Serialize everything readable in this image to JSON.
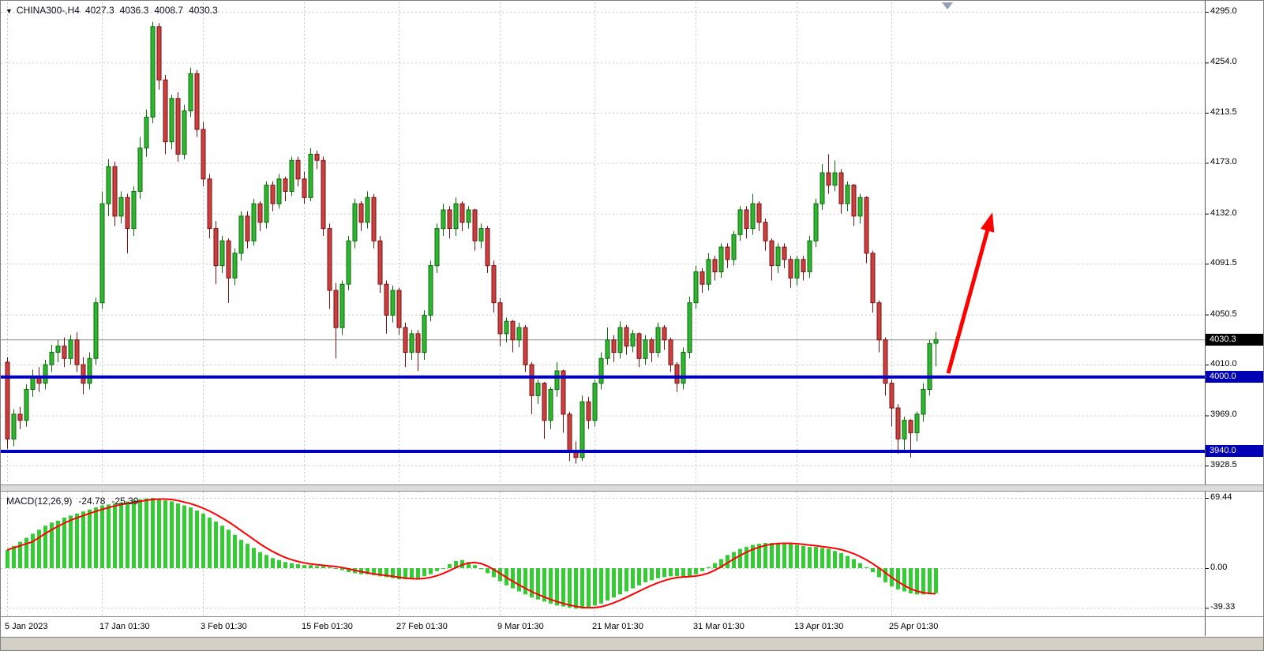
{
  "header": {
    "dropdown_icon": "▼",
    "symbol": "CHINA300-,H4",
    "open": "4027.3",
    "high": "4036.3",
    "low": "4008.7",
    "close": "4030.3"
  },
  "macd_panel": {
    "title": "MACD(12,26,9)",
    "macd_value": "-24.78",
    "signal_value": "-25.39"
  },
  "levels": {
    "current": {
      "label": "4030.3",
      "price": 4030.3
    },
    "lines": [
      {
        "label": "4000.0",
        "price": 4000.0
      },
      {
        "label": "3940.0",
        "price": 3940.0
      }
    ]
  },
  "colors": {
    "up_fill": "#2fb52f",
    "up_stroke": "#0b6b0b",
    "down_fill": "#c94040",
    "down_stroke": "#7e0f0f",
    "grid": "#c8c8c8",
    "support_line": "#0000c0",
    "badge_blue": "#0000b4",
    "badge_black": "#000000",
    "arrow": "#ff0000",
    "hist": "#33cc33",
    "signal_line": "#ff0000",
    "current_price_line": "#8a8a8a"
  },
  "chart_data": {
    "type": "candlestick",
    "title": "CHINA300- H4",
    "x_tick_labels": [
      "5 Jan 2023",
      "17 Jan 01:30",
      "3 Feb 01:30",
      "15 Feb 01:30",
      "27 Feb 01:30",
      "9 Mar 01:30",
      "21 Mar 01:30",
      "31 Mar 01:30",
      "13 Apr 01:30",
      "25 Apr 01:30"
    ],
    "x_tick_indices": [
      0,
      15,
      31,
      47,
      62,
      78,
      93,
      109,
      125,
      140
    ],
    "price_ticks": [
      4295.0,
      4254.0,
      4213.5,
      4173.0,
      4132.0,
      4091.5,
      4050.5,
      4010.0,
      3969.0,
      3928.5
    ],
    "current_price": 4030.3,
    "support_lines": [
      4000.0,
      3940.0
    ],
    "arrow_annotation": {
      "start": {
        "index": 149,
        "price": 4003
      },
      "end": {
        "index": 156,
        "price": 4133
      }
    },
    "ohlc": [
      [
        4012,
        4016,
        3942,
        3950
      ],
      [
        3950,
        3974,
        3944,
        3970
      ],
      [
        3970,
        3976,
        3958,
        3965
      ],
      [
        3965,
        3994,
        3960,
        3990
      ],
      [
        3990,
        4006,
        3984,
        4000
      ],
      [
        4000,
        4008,
        3988,
        3995
      ],
      [
        3995,
        4014,
        3990,
        4010
      ],
      [
        4010,
        4026,
        4004,
        4020
      ],
      [
        4020,
        4030,
        4012,
        4025
      ],
      [
        4025,
        4032,
        4008,
        4015
      ],
      [
        4015,
        4034,
        4010,
        4030
      ],
      [
        4030,
        4036,
        4004,
        4010
      ],
      [
        4010,
        4016,
        3986,
        3995
      ],
      [
        3995,
        4020,
        3990,
        4015
      ],
      [
        4015,
        4064,
        4010,
        4060
      ],
      [
        4060,
        4150,
        4055,
        4140
      ],
      [
        4140,
        4176,
        4130,
        4170
      ],
      [
        4170,
        4174,
        4122,
        4130
      ],
      [
        4130,
        4150,
        4124,
        4145
      ],
      [
        4145,
        4148,
        4100,
        4120
      ],
      [
        4120,
        4154,
        4114,
        4150
      ],
      [
        4150,
        4194,
        4144,
        4185
      ],
      [
        4185,
        4216,
        4178,
        4210
      ],
      [
        4210,
        4287,
        4205,
        4283
      ],
      [
        4283,
        4286,
        4232,
        4240
      ],
      [
        4240,
        4244,
        4180,
        4190
      ],
      [
        4190,
        4228,
        4184,
        4225
      ],
      [
        4225,
        4230,
        4174,
        4180
      ],
      [
        4180,
        4220,
        4176,
        4215
      ],
      [
        4215,
        4250,
        4210,
        4245
      ],
      [
        4245,
        4248,
        4194,
        4200
      ],
      [
        4200,
        4206,
        4154,
        4160
      ],
      [
        4160,
        4164,
        4112,
        4120
      ],
      [
        4120,
        4126,
        4075,
        4090
      ],
      [
        4090,
        4114,
        4084,
        4110
      ],
      [
        4110,
        4112,
        4060,
        4080
      ],
      [
        4080,
        4104,
        4074,
        4100
      ],
      [
        4100,
        4134,
        4094,
        4130
      ],
      [
        4130,
        4134,
        4104,
        4110
      ],
      [
        4110,
        4144,
        4106,
        4140
      ],
      [
        4140,
        4142,
        4118,
        4125
      ],
      [
        4125,
        4158,
        4120,
        4155
      ],
      [
        4155,
        4158,
        4134,
        4140
      ],
      [
        4140,
        4164,
        4136,
        4160
      ],
      [
        4160,
        4162,
        4142,
        4150
      ],
      [
        4150,
        4178,
        4146,
        4175
      ],
      [
        4175,
        4178,
        4154,
        4160
      ],
      [
        4160,
        4166,
        4140,
        4145
      ],
      [
        4145,
        4185,
        4142,
        4180
      ],
      [
        4180,
        4183,
        4168,
        4175
      ],
      [
        4175,
        4178,
        4114,
        4120
      ],
      [
        4120,
        4124,
        4055,
        4070
      ],
      [
        4070,
        4076,
        4015,
        4040
      ],
      [
        4040,
        4078,
        4034,
        4075
      ],
      [
        4075,
        4114,
        4070,
        4110
      ],
      [
        4110,
        4144,
        4104,
        4140
      ],
      [
        4140,
        4142,
        4118,
        4125
      ],
      [
        4125,
        4150,
        4120,
        4145
      ],
      [
        4145,
        4148,
        4104,
        4110
      ],
      [
        4110,
        4114,
        4068,
        4075
      ],
      [
        4075,
        4078,
        4035,
        4050
      ],
      [
        4050,
        4074,
        4044,
        4070
      ],
      [
        4070,
        4072,
        4034,
        4040
      ],
      [
        4040,
        4044,
        4008,
        4020
      ],
      [
        4020,
        4038,
        4014,
        4035
      ],
      [
        4035,
        4038,
        4005,
        4020
      ],
      [
        4020,
        4054,
        4014,
        4050
      ],
      [
        4050,
        4094,
        4045,
        4090
      ],
      [
        4090,
        4124,
        4084,
        4120
      ],
      [
        4120,
        4140,
        4114,
        4135
      ],
      [
        4135,
        4138,
        4112,
        4120
      ],
      [
        4120,
        4145,
        4114,
        4140
      ],
      [
        4140,
        4142,
        4118,
        4125
      ],
      [
        4125,
        4138,
        4120,
        4135
      ],
      [
        4135,
        4136,
        4102,
        4110
      ],
      [
        4110,
        4124,
        4104,
        4120
      ],
      [
        4120,
        4122,
        4084,
        4090
      ],
      [
        4090,
        4094,
        4052,
        4060
      ],
      [
        4060,
        4064,
        4025,
        4035
      ],
      [
        4035,
        4048,
        4028,
        4045
      ],
      [
        4045,
        4046,
        4020,
        4030
      ],
      [
        4030,
        4044,
        4024,
        4040
      ],
      [
        4040,
        4042,
        4004,
        4010
      ],
      [
        4010,
        4012,
        3970,
        3985
      ],
      [
        3985,
        3998,
        3978,
        3995
      ],
      [
        3995,
        3996,
        3950,
        3965
      ],
      [
        3965,
        3992,
        3958,
        3990
      ],
      [
        3990,
        4012,
        3984,
        4005
      ],
      [
        4005,
        4006,
        3955,
        3970
      ],
      [
        3970,
        3972,
        3932,
        3940
      ],
      [
        3940,
        3948,
        3930,
        3935
      ],
      [
        3935,
        3985,
        3932,
        3980
      ],
      [
        3980,
        3984,
        3958,
        3965
      ],
      [
        3965,
        3998,
        3960,
        3995
      ],
      [
        3995,
        4020,
        3990,
        4015
      ],
      [
        4015,
        4040,
        4010,
        4030
      ],
      [
        4030,
        4034,
        4012,
        4020
      ],
      [
        4020,
        4045,
        4015,
        4040
      ],
      [
        4040,
        4042,
        4018,
        4025
      ],
      [
        4025,
        4038,
        4020,
        4035
      ],
      [
        4035,
        4036,
        4008,
        4015
      ],
      [
        4015,
        4034,
        4010,
        4030
      ],
      [
        4030,
        4032,
        4012,
        4020
      ],
      [
        4020,
        4044,
        4016,
        4040
      ],
      [
        4040,
        4042,
        4022,
        4030
      ],
      [
        4030,
        4032,
        4004,
        4010
      ],
      [
        4010,
        4012,
        3988,
        3995
      ],
      [
        3995,
        4024,
        3990,
        4020
      ],
      [
        4020,
        4065,
        4015,
        4060
      ],
      [
        4060,
        4090,
        4055,
        4085
      ],
      [
        4085,
        4088,
        4068,
        4075
      ],
      [
        4075,
        4100,
        4070,
        4095
      ],
      [
        4095,
        4098,
        4078,
        4085
      ],
      [
        4085,
        4108,
        4080,
        4105
      ],
      [
        4105,
        4108,
        4088,
        4095
      ],
      [
        4095,
        4118,
        4090,
        4115
      ],
      [
        4115,
        4138,
        4110,
        4135
      ],
      [
        4135,
        4138,
        4112,
        4120
      ],
      [
        4120,
        4148,
        4115,
        4140
      ],
      [
        4140,
        4142,
        4118,
        4125
      ],
      [
        4125,
        4128,
        4102,
        4110
      ],
      [
        4110,
        4112,
        4078,
        4090
      ],
      [
        4090,
        4108,
        4084,
        4105
      ],
      [
        4105,
        4108,
        4088,
        4095
      ],
      [
        4095,
        4098,
        4072,
        4080
      ],
      [
        4080,
        4098,
        4074,
        4095
      ],
      [
        4095,
        4098,
        4078,
        4085
      ],
      [
        4085,
        4114,
        4080,
        4110
      ],
      [
        4110,
        4144,
        4105,
        4140
      ],
      [
        4140,
        4172,
        4135,
        4165
      ],
      [
        4165,
        4180,
        4148,
        4155
      ],
      [
        4155,
        4175,
        4150,
        4165
      ],
      [
        4165,
        4168,
        4132,
        4140
      ],
      [
        4140,
        4158,
        4134,
        4155
      ],
      [
        4155,
        4156,
        4122,
        4130
      ],
      [
        4130,
        4148,
        4124,
        4145
      ],
      [
        4145,
        4146,
        4092,
        4100
      ],
      [
        4100,
        4102,
        4052,
        4060
      ],
      [
        4060,
        4062,
        4020,
        4030
      ],
      [
        4030,
        4032,
        3985,
        3995
      ],
      [
        3995,
        3998,
        3960,
        3975
      ],
      [
        3975,
        3978,
        3938,
        3950
      ],
      [
        3950,
        3968,
        3940,
        3965
      ],
      [
        3965,
        3966,
        3935,
        3955
      ],
      [
        3955,
        3972,
        3948,
        3970
      ],
      [
        3970,
        3995,
        3964,
        3990
      ],
      [
        3990,
        4030,
        3985,
        4027
      ],
      [
        4027.3,
        4036.3,
        4008.7,
        4030.3
      ]
    ],
    "macd": {
      "params": [
        12,
        26,
        9
      ],
      "ticks": [
        69.44,
        0.0,
        -39.33
      ],
      "last_macd": -24.78,
      "last_signal": -25.39,
      "signal_smoothing": 5,
      "histogram": [
        18,
        22,
        26,
        30,
        34,
        38,
        42,
        45,
        47,
        50,
        52,
        54,
        56,
        58,
        60,
        62,
        63,
        64,
        65,
        66,
        67,
        68,
        69,
        69.44,
        68,
        67,
        66,
        64,
        62,
        60,
        57,
        54,
        50,
        46,
        42,
        38,
        33,
        28,
        24,
        20,
        16,
        13,
        10,
        8,
        6,
        5,
        4,
        3,
        3,
        2,
        2,
        1,
        0,
        -2,
        -4,
        -5,
        -6,
        -6,
        -7,
        -8,
        -9,
        -10,
        -11,
        -11,
        -11,
        -10,
        -8,
        -6,
        -3,
        0,
        4,
        7,
        8,
        6,
        3,
        -1,
        -5,
        -9,
        -13,
        -17,
        -20,
        -23,
        -26,
        -29,
        -31,
        -33,
        -35,
        -37,
        -38,
        -39,
        -40,
        -40,
        -39,
        -37,
        -35,
        -32,
        -29,
        -26,
        -23,
        -20,
        -17,
        -14,
        -12,
        -10,
        -9,
        -8,
        -8,
        -9,
        -8,
        -6,
        -3,
        1,
        5,
        9,
        13,
        16,
        19,
        21,
        23,
        24,
        25,
        25,
        25,
        24,
        24,
        23,
        22,
        21,
        21,
        20,
        19,
        17,
        15,
        12,
        9,
        5,
        1,
        -4,
        -9,
        -14,
        -18,
        -21,
        -23,
        -25,
        -26,
        -26,
        -25,
        -24.78
      ]
    }
  }
}
